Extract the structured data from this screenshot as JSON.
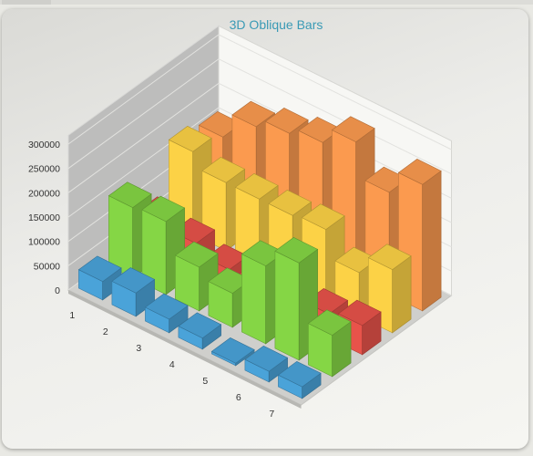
{
  "chart_data": {
    "type": "bar",
    "title": "3D Oblique Bars",
    "categories": [
      "1",
      "2",
      "3",
      "4",
      "5",
      "6",
      "7"
    ],
    "y_ticks": [
      "0",
      "50000",
      "100000",
      "150000",
      "200000",
      "250000",
      "300000"
    ],
    "ylim": [
      0,
      300000
    ],
    "grid": true,
    "series": [
      {
        "values": [
          38000,
          48000,
          28000,
          23000,
          5000,
          22000,
          24000
        ],
        "color": "#4aa3d9"
      },
      {
        "values": [
          145000,
          150000,
          90000,
          70000,
          160000,
          200000,
          85000
        ],
        "color": "#85d645"
      },
      {
        "values": [
          70000,
          60000,
          40000,
          40000,
          45000,
          50000,
          60000
        ],
        "color": "#e8534a"
      },
      {
        "values": [
          170000,
          140000,
          140000,
          140000,
          145000,
          90000,
          130000
        ],
        "color": "#fcd246"
      },
      {
        "values": [
          155000,
          210000,
          230000,
          245000,
          280000,
          210000,
          260000
        ],
        "color": "#fb9a4f"
      }
    ]
  }
}
